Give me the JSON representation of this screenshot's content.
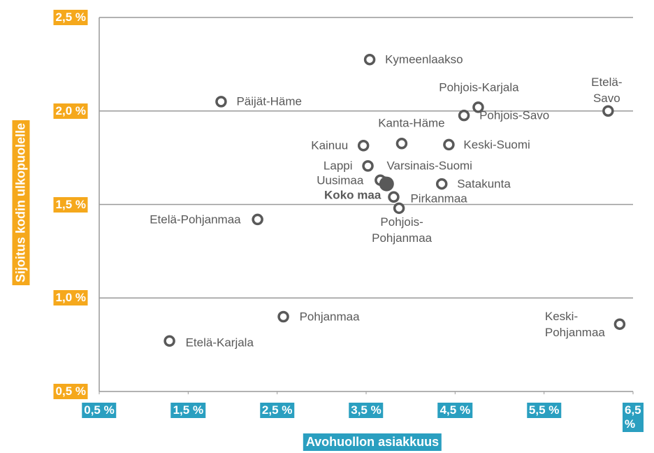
{
  "chart_data": {
    "type": "scatter",
    "ylabel": "Sijoitus kodin ulkopuolelle",
    "xlabel": "Avohuollon asiakkuus",
    "xlim": [
      0.5,
      6.5
    ],
    "xticks": [
      {
        "value": 0.5,
        "label": "0,5 %"
      },
      {
        "value": 1.5,
        "label": "1,5 %"
      },
      {
        "value": 2.5,
        "label": "2,5 %"
      },
      {
        "value": 3.5,
        "label": "3,5 %"
      },
      {
        "value": 4.5,
        "label": "4,5 %"
      },
      {
        "value": 5.5,
        "label": "5,5 %"
      },
      {
        "value": 6.5,
        "label": "6,5 %"
      }
    ],
    "ylim": [
      0.5,
      2.5
    ],
    "yticks": [
      {
        "value": 0.5,
        "label": "0,5 %"
      },
      {
        "value": 1.0,
        "label": "1,0 %"
      },
      {
        "value": 1.5,
        "label": "1,5 %"
      },
      {
        "value": 2.0,
        "label": "2,0 %"
      },
      {
        "value": 2.5,
        "label": "2,5 %"
      }
    ],
    "grid": true,
    "color": "#595959",
    "points": [
      {
        "label": "Kymeenlaakso",
        "x": 3.54,
        "y": 2.275
      },
      {
        "label": "Päijät-Häme",
        "x": 1.87,
        "y": 2.05
      },
      {
        "label": "Pohjois-Karjala",
        "x": 4.76,
        "y": 2.02
      },
      {
        "label": "Pohjois-Savo",
        "x": 4.6,
        "y": 1.976
      },
      {
        "label": "Etelä-Savo",
        "x": 6.22,
        "y": 2.0
      },
      {
        "label": "Kanta-Häme",
        "x": 3.9,
        "y": 1.826
      },
      {
        "label": "Kainuu",
        "x": 3.47,
        "y": 1.815
      },
      {
        "label": "Keski-Suomi",
        "x": 4.43,
        "y": 1.82
      },
      {
        "label": "Lappi",
        "x": 3.52,
        "y": 1.706
      },
      {
        "label": "Varsinais-Suomi",
        "x": 3.7,
        "y": 1.62
      },
      {
        "label": "Uusimaa",
        "x": 3.66,
        "y": 1.63
      },
      {
        "label": "Satakunta",
        "x": 4.35,
        "y": 1.61
      },
      {
        "label": "Pirkanmaa",
        "x": 3.81,
        "y": 1.54
      },
      {
        "label": "Pohjois-\nPohjanmaa",
        "x": 3.87,
        "y": 1.48
      },
      {
        "label": "Etelä-Pohjanmaa",
        "x": 2.28,
        "y": 1.42
      },
      {
        "label": "Pohjanmaa",
        "x": 2.57,
        "y": 0.9
      },
      {
        "label": "Etelä-Karjala",
        "x": 1.29,
        "y": 0.77
      },
      {
        "label": "Keski-Pohjanmaa",
        "x": 6.35,
        "y": 0.86
      }
    ],
    "total": {
      "label": "Koko maa",
      "x": 3.73,
      "y": 1.61
    }
  }
}
